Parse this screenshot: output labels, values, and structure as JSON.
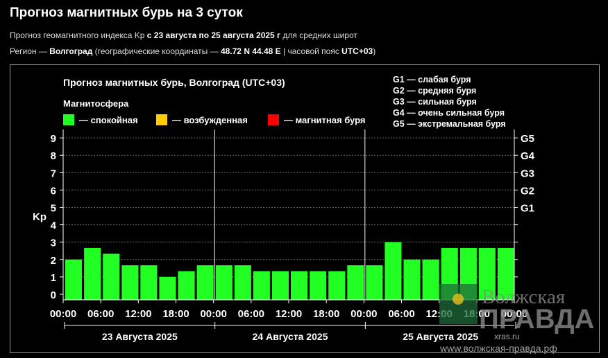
{
  "page": {
    "title": "Прогноз магнитных бурь на 3 суток",
    "line1": {
      "prefix": "Прогноз геомагнитного индекса Kp ",
      "range": "с 23 августа по 25 августа 2025 г",
      "suffix": " для средних широт"
    },
    "line2": {
      "prefix": "Регион — ",
      "region": "Волгоград",
      "mid": " (географические координаты — ",
      "coords": "48.72 N 44.48 E",
      "mid2": " | часовой пояс ",
      "tz": "UTC+03",
      "suffix": ")"
    }
  },
  "colors": {
    "quiet": "#22ff22",
    "excited": "#ffcc00",
    "storm": "#ff0000",
    "background": "#000000"
  },
  "chart_data": {
    "type": "bar",
    "title": "Прогноз магнитных бурь, Волгоград (UTC+03)",
    "legend_title": "Магнитосфера",
    "legend": [
      {
        "label": "— спокойная",
        "color": "#22ff22"
      },
      {
        "label": "— возбужденная",
        "color": "#ffcc00"
      },
      {
        "label": "— магнитная буря",
        "color": "#ff0000"
      }
    ],
    "g_legend": [
      "G1 — слабая буря",
      "G2 — средняя буря",
      "G3 — сильная буря",
      "G4 — очень сильная буря",
      "G5 — экстремальная буря"
    ],
    "ylabel": "Kp",
    "ylim": [
      0,
      9
    ],
    "yticks": [
      0,
      1,
      2,
      3,
      4,
      5,
      6,
      7,
      8,
      9
    ],
    "g_scale": [
      {
        "label": "G1",
        "kp": 5
      },
      {
        "label": "G2",
        "kp": 6
      },
      {
        "label": "G3",
        "kp": 7
      },
      {
        "label": "G4",
        "kp": 8
      },
      {
        "label": "G5",
        "kp": 9
      }
    ],
    "xtick_labels": [
      "00:00",
      "06:00",
      "12:00",
      "18:00",
      "00:00",
      "06:00",
      "12:00",
      "18:00",
      "00:00",
      "06:00",
      "12:00",
      "18:00",
      "00:00"
    ],
    "days": [
      "23 Августа 2025",
      "24 Августа 2025",
      "25 Августа 2025"
    ],
    "values": [
      2.0,
      2.67,
      2.33,
      1.67,
      1.67,
      1.0,
      1.33,
      1.67,
      1.67,
      1.67,
      1.33,
      1.33,
      1.33,
      1.33,
      1.33,
      1.67,
      1.67,
      3.0,
      2.0,
      2.0,
      2.67,
      2.67,
      2.67,
      2.67
    ],
    "grid": true
  },
  "watermark": {
    "brand_top": "Волжская",
    "brand_bottom": "ПРАВДА",
    "site": "www.волжская-правда.рф",
    "source": "xras.ru"
  }
}
